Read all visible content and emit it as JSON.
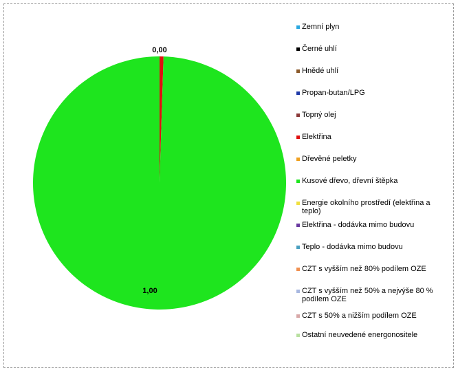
{
  "chart_data": {
    "type": "pie",
    "title": "",
    "slices": [
      {
        "name": "Zemní plyn",
        "value": 0.0,
        "color": "#2aa8e0"
      },
      {
        "name": "Černé uhlí",
        "value": 0.0,
        "color": "#000000"
      },
      {
        "name": "Hnědé uhlí",
        "value": 0.0,
        "color": "#8b5a2b"
      },
      {
        "name": "Propan-butan/LPG",
        "value": 0.0,
        "color": "#1f3aa8"
      },
      {
        "name": "Topný olej",
        "value": 0.0,
        "color": "#8b3a3a"
      },
      {
        "name": "Elektřina",
        "value": 0.005,
        "color": "#e01010"
      },
      {
        "name": "Dřevěné peletky",
        "value": 0.0,
        "color": "#f0a020"
      },
      {
        "name": "Kusové dřevo, dřevní štěpka",
        "value": 0.995,
        "color": "#1ee51e"
      },
      {
        "name": "Energie okolního prostředí (elektřina a teplo)",
        "value": 0.0,
        "color": "#f0e040"
      },
      {
        "name": "Elektřina - dodávka mimo budovu",
        "value": 0.0,
        "color": "#6a3aa0"
      },
      {
        "name": "Teplo - dodávka mimo budovu",
        "value": 0.0,
        "color": "#4aa0c0"
      },
      {
        "name": "CZT s vyšším než 80% podílem OZE",
        "value": 0.0,
        "color": "#f09050"
      },
      {
        "name": "CZT  s vyšším než 50% a nejvýše 80 % podílem OZE",
        "value": 0.0,
        "color": "#a8b8e0"
      },
      {
        "name": "CZT s 50% a nižším podílem OZE",
        "value": 0.0,
        "color": "#d8a8a8"
      },
      {
        "name": "Ostatní neuvedené energonositele",
        "value": 0.0,
        "color": "#b8e0a0"
      }
    ],
    "data_labels": [
      {
        "text": "0,00",
        "slice": "Elektřina"
      },
      {
        "text": "1,00",
        "slice": "Kusové dřevo, dřevní štěpka"
      }
    ],
    "legend_position": "right"
  }
}
